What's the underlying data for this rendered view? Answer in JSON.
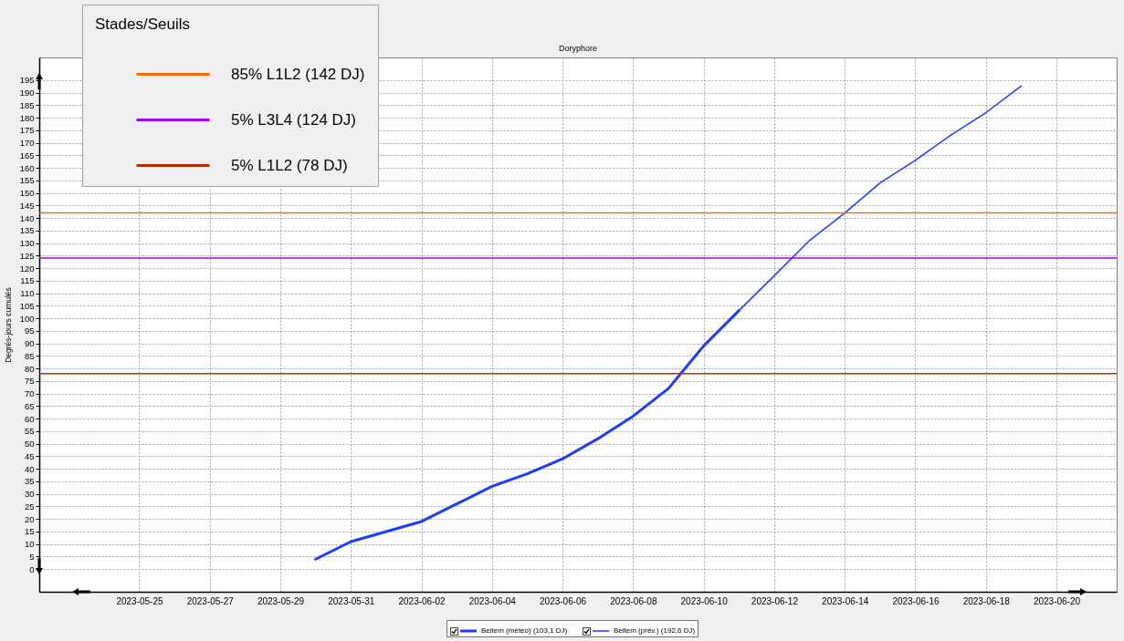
{
  "chart_data": {
    "type": "line",
    "title": "Doryphore",
    "ylabel": "Degrés-jours cumulés",
    "legend_title": "Stades/Seuils",
    "series": [
      {
        "name": "Beitem (météo) (103,1 DJ)",
        "color": "#1e3cff",
        "x": [
          "2023-05-30",
          "2023-05-31",
          "2023-06-01",
          "2023-06-02",
          "2023-06-03",
          "2023-06-04",
          "2023-06-05",
          "2023-06-06",
          "2023-06-07",
          "2023-06-08",
          "2023-06-09",
          "2023-06-10",
          "2023-06-11"
        ],
        "values": [
          4,
          11,
          15,
          19,
          26,
          33,
          38,
          44,
          52,
          61,
          72,
          89,
          103.1
        ]
      },
      {
        "name": "Beitem (prév.) (192,6 DJ)",
        "color": "#1e3cff",
        "x": [
          "2023-06-11",
          "2023-06-12",
          "2023-06-13",
          "2023-06-14",
          "2023-06-15",
          "2023-06-16",
          "2023-06-17",
          "2023-06-18",
          "2023-06-19"
        ],
        "values": [
          103.1,
          117,
          131,
          142,
          154,
          163,
          173,
          182,
          192.6
        ]
      }
    ],
    "xlim": [
      "2023-05-22T04:00",
      "2023-06-21T17:00"
    ],
    "xticks": [
      "2023-05-25",
      "2023-05-27",
      "2023-05-29",
      "2023-05-31",
      "2023-06-02",
      "2023-06-04",
      "2023-06-06",
      "2023-06-08",
      "2023-06-10",
      "2023-06-12",
      "2023-06-14",
      "2023-06-16",
      "2023-06-18",
      "2023-06-20"
    ],
    "ylim": [
      -9,
      204
    ],
    "yticks": [
      0,
      5,
      10,
      15,
      20,
      25,
      30,
      35,
      40,
      45,
      50,
      55,
      60,
      65,
      70,
      75,
      80,
      85,
      90,
      95,
      100,
      105,
      110,
      115,
      120,
      125,
      130,
      135,
      140,
      145,
      150,
      155,
      160,
      165,
      170,
      175,
      180,
      185,
      190,
      195
    ],
    "ref_lines": [
      {
        "axis": "y",
        "value": 142,
        "label": "85% L1L2 (142 DJ)",
        "color": "#ff6a00"
      },
      {
        "axis": "y",
        "value": 124,
        "label": "5% L3L4 (124 DJ)",
        "color": "#a000ff"
      },
      {
        "axis": "y",
        "value": 78,
        "label": "5% L1L2 (78 DJ)",
        "color": "#b33000"
      }
    ],
    "grid": true,
    "legend": "bottom"
  }
}
